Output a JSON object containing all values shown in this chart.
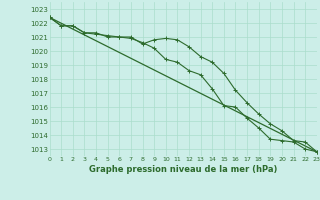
{
  "line1_y": [
    1022.4,
    1021.8,
    1021.8,
    1021.3,
    1021.2,
    1021.1,
    1021.0,
    1021.0,
    1020.5,
    1020.8,
    1020.9,
    1020.8,
    1020.3,
    1019.6,
    1019.2,
    1018.4,
    1017.2,
    1016.3,
    1015.5,
    1014.8,
    1014.3,
    1013.6,
    1013.5,
    1012.8
  ],
  "line2_y": [
    1022.4,
    1021.8,
    1021.8,
    1021.3,
    1021.3,
    1021.0,
    1021.0,
    1020.9,
    1020.6,
    1020.2,
    1019.4,
    1019.2,
    1018.6,
    1018.3,
    1017.3,
    1016.1,
    1016.0,
    1015.2,
    1014.5,
    1013.7,
    1013.6,
    1013.5,
    1013.0,
    1012.8
  ],
  "trend_x": [
    0,
    23
  ],
  "trend_y": [
    1022.4,
    1012.8
  ],
  "bg_color": "#cceee8",
  "grid_color": "#aaddcc",
  "line_color": "#2d6b2d",
  "yticks": [
    1013,
    1014,
    1015,
    1016,
    1017,
    1018,
    1019,
    1020,
    1021,
    1022,
    1023
  ],
  "xlabel": "Graphe pression niveau de la mer (hPa)",
  "xlim": [
    0,
    23
  ],
  "ylim": [
    1012.5,
    1023.5
  ],
  "xticks": [
    0,
    1,
    2,
    3,
    4,
    5,
    6,
    7,
    8,
    9,
    10,
    11,
    12,
    13,
    14,
    15,
    16,
    17,
    18,
    19,
    20,
    21,
    22,
    23
  ]
}
